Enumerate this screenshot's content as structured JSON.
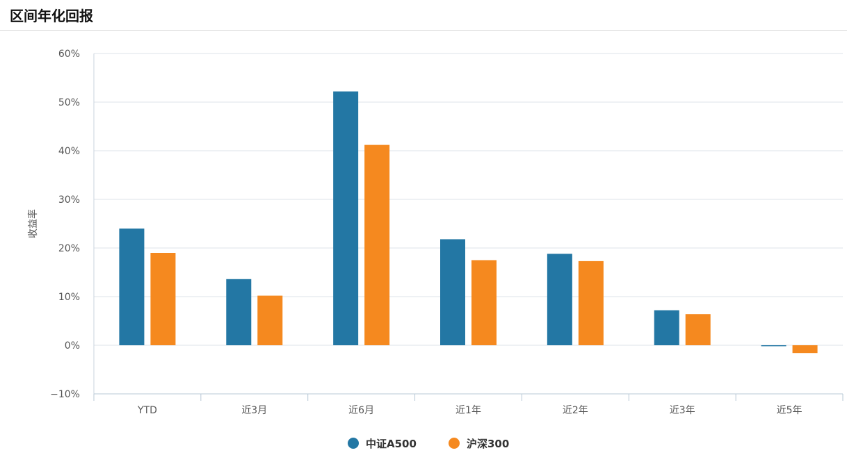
{
  "page": {
    "title": "区间年化回报"
  },
  "chart_data": {
    "type": "bar",
    "title": "",
    "xlabel": "",
    "ylabel": "收益率",
    "categories": [
      "YTD",
      "近3月",
      "近6月",
      "近1年",
      "近2年",
      "近3年",
      "近5年"
    ],
    "series": [
      {
        "name": "中证A500",
        "color": "#2377a4",
        "values": [
          24.0,
          13.6,
          52.2,
          21.8,
          18.8,
          7.2,
          -0.2
        ]
      },
      {
        "name": "沪深300",
        "color": "#f5891f",
        "values": [
          19.0,
          10.2,
          41.2,
          17.5,
          17.3,
          6.4,
          -1.6
        ]
      }
    ],
    "ylim": [
      -10,
      60
    ],
    "yticks": [
      -10,
      0,
      10,
      20,
      30,
      40,
      50,
      60
    ],
    "ytick_labels": [
      "−10%",
      "0%",
      "10%",
      "20%",
      "30%",
      "40%",
      "50%",
      "60%"
    ],
    "grid": true,
    "legend_position": "bottom-center"
  }
}
